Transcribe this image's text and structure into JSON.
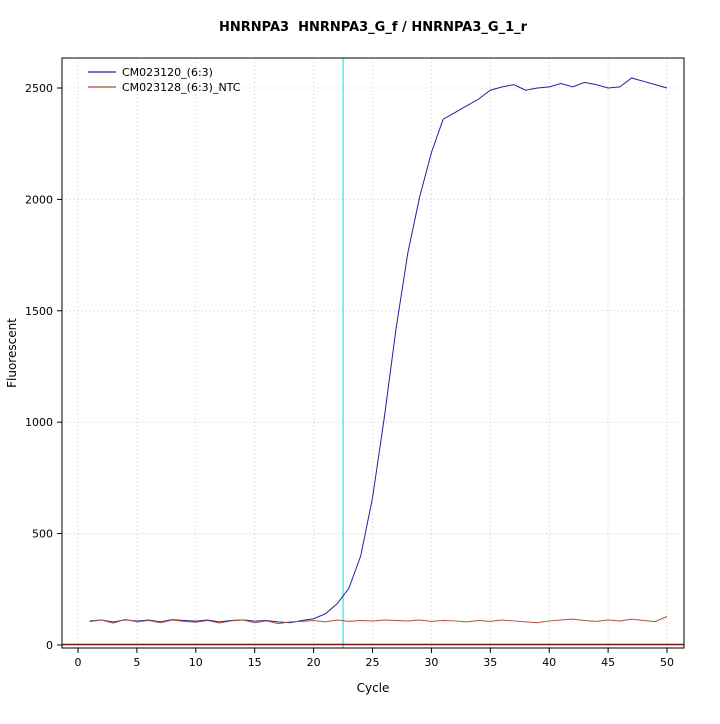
{
  "chart_data": {
    "type": "line",
    "title": "HNRNPA3  HNRNPA3_G_f / HNRNPA3_G_1_r",
    "xlabel": "Cycle",
    "ylabel": "Fluorescent",
    "xlim": [
      -1.4,
      51.4
    ],
    "ylim": [
      -15,
      2635
    ],
    "x_ticks": [
      0,
      5,
      10,
      15,
      20,
      25,
      30,
      35,
      40,
      45,
      50
    ],
    "y_ticks": [
      0,
      500,
      1000,
      1500,
      2000,
      2500
    ],
    "grid": "dotted",
    "legend_position": "top-left",
    "threshold_line": {
      "cycle": 22.5,
      "color": "#00dddd"
    },
    "zero_line": {
      "value": 2,
      "color": "#7a1212"
    },
    "series": [
      {
        "name": "CM023120_(6:3)",
        "color": "#2222a0",
        "x_start": 1,
        "values": [
          108,
          112,
          103,
          113,
          107,
          112,
          104,
          114,
          110,
          107,
          112,
          104,
          110,
          113,
          107,
          110,
          104,
          100,
          110,
          118,
          140,
          185,
          255,
          400,
          660,
          1020,
          1420,
          1760,
          2010,
          2210,
          2360,
          2390,
          2420,
          2450,
          2490,
          2505,
          2515,
          2490,
          2500,
          2505,
          2520,
          2505,
          2525,
          2515,
          2500,
          2505,
          2545,
          2530,
          2515,
          2500
        ]
      },
      {
        "name": "CM023128_(6:3)_NTC",
        "color": "#b0523f",
        "x_start": 1,
        "values": [
          105,
          112,
          98,
          115,
          104,
          110,
          100,
          112,
          106,
          102,
          110,
          99,
          108,
          112,
          100,
          108,
          96,
          104,
          106,
          110,
          104,
          112,
          106,
          110,
          108,
          112,
          110,
          108,
          112,
          106,
          110,
          108,
          104,
          110,
          106,
          112,
          108,
          104,
          100,
          108,
          112,
          116,
          110,
          106,
          112,
          108,
          116,
          110,
          105,
          128
        ]
      }
    ]
  }
}
